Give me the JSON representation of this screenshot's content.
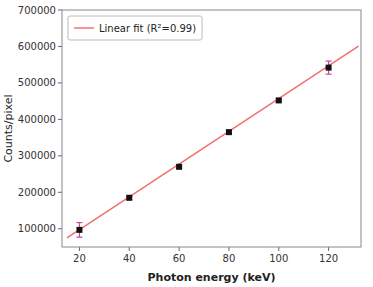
{
  "chart_data": {
    "type": "scatter",
    "xlabel": "Photon energy (keV)",
    "ylabel": "Counts/pixel",
    "xlim": [
      13,
      133
    ],
    "ylim": [
      50000,
      700000
    ],
    "xticks": [
      20,
      40,
      60,
      80,
      100,
      120
    ],
    "yticks": [
      100000,
      200000,
      300000,
      400000,
      500000,
      600000,
      700000
    ],
    "grid": false,
    "legend": "upper left",
    "series": [
      {
        "type": "line",
        "name": "Linear fit (R²=0.99)",
        "color": "#f07070",
        "x": [
          15,
          132
        ],
        "values": [
          75350,
          600680
        ]
      },
      {
        "type": "errorbar",
        "color": "#cc44aa",
        "x": [
          20,
          40,
          60,
          80,
          100,
          120
        ],
        "values": [
          97000,
          185000,
          270000,
          365000,
          452000,
          542000
        ],
        "errors": [
          20000,
          5000,
          5000,
          5000,
          5000,
          18000
        ]
      },
      {
        "type": "scatter",
        "color": "#111111",
        "marker": "square",
        "x": [
          20,
          40,
          60,
          80,
          100,
          120
        ],
        "values": [
          97000,
          185000,
          270000,
          365000,
          452000,
          542000
        ]
      }
    ]
  }
}
